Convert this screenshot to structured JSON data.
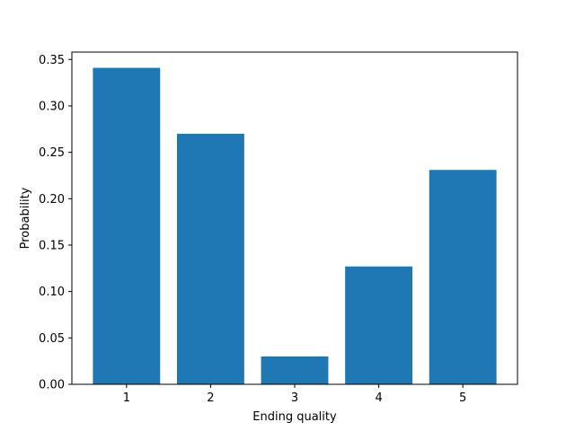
{
  "chart_data": {
    "type": "bar",
    "title": "",
    "xlabel": "Ending quality",
    "ylabel": "Probability",
    "categories": [
      "1",
      "2",
      "3",
      "4",
      "5"
    ],
    "values": [
      0.341,
      0.27,
      0.03,
      0.127,
      0.231
    ],
    "ylim": [
      0,
      0.358
    ],
    "xlim": [
      0.35,
      5.65
    ],
    "yticks": [
      0.0,
      0.05,
      0.1,
      0.15,
      0.2,
      0.25,
      0.3,
      0.35
    ],
    "ytick_labels": [
      "0.00",
      "0.05",
      "0.10",
      "0.15",
      "0.20",
      "0.25",
      "0.30",
      "0.35"
    ],
    "grid": false,
    "bar_color": "#1f77b4"
  }
}
